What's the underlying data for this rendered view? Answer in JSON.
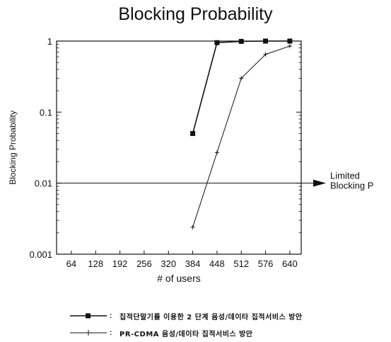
{
  "chart_data": {
    "type": "line",
    "title": "Blocking Probability",
    "xlabel": "# of users",
    "ylabel": "Blocking Probability",
    "x_ticks": [
      "64",
      "128",
      "192",
      "256",
      "320",
      "384",
      "448",
      "512",
      "576",
      "640"
    ],
    "y_ticks": [
      "0.001",
      "0.01",
      "0.1",
      "1"
    ],
    "y_scale": "log",
    "xlim": [
      25,
      670
    ],
    "ylim": [
      0.001,
      1
    ],
    "grid": false,
    "series": [
      {
        "name": "집적단말기를 이용한 2 단계 음성/데이타 집적서비스 방안",
        "marker": "square",
        "x": [
          384,
          448,
          512,
          576,
          640
        ],
        "y": [
          0.05,
          0.95,
          0.99,
          1.0,
          1.0
        ]
      },
      {
        "name": "PR-CDMA 음성/데이타 집적서비스 방안",
        "marker": "plus",
        "x": [
          384,
          448,
          512,
          576,
          640
        ],
        "y": [
          0.0024,
          0.027,
          0.3,
          0.65,
          0.85
        ]
      }
    ],
    "reference_line": {
      "y": 0.01,
      "label_line1": "Limited",
      "label_line2": "Blocking P"
    }
  }
}
